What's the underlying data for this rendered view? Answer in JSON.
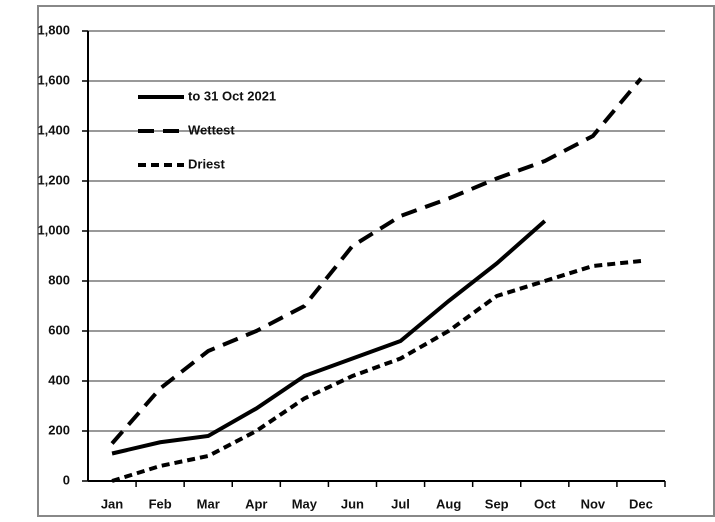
{
  "chart_data": {
    "type": "line",
    "categories": [
      "Jan",
      "Feb",
      "Mar",
      "Apr",
      "May",
      "Jun",
      "Jul",
      "Aug",
      "Sep",
      "Oct",
      "Nov",
      "Dec"
    ],
    "series": [
      {
        "name": "to 31 Oct 2021",
        "color": "#000000",
        "line_style": "solid",
        "values": [
          110,
          155,
          180,
          290,
          420,
          490,
          560,
          720,
          870,
          1040,
          null,
          null
        ]
      },
      {
        "name": "Wettest",
        "color": "#000000",
        "line_style": "dashed",
        "values": [
          150,
          370,
          520,
          600,
          700,
          940,
          1060,
          1130,
          1210,
          1280,
          1380,
          1610
        ]
      },
      {
        "name": "Driest",
        "color": "#000000",
        "line_style": "dotted",
        "values": [
          0,
          60,
          100,
          200,
          330,
          420,
          490,
          600,
          740,
          800,
          860,
          880
        ]
      }
    ],
    "ylim": [
      0,
      1800
    ],
    "yticks": [
      0,
      200,
      400,
      600,
      800,
      {
        "value": 1000,
        "label": "1,000"
      },
      {
        "value": 1200,
        "label": "1,200"
      },
      {
        "value": 1400,
        "label": "1,400"
      },
      {
        "value": 1600,
        "label": "1,600"
      },
      {
        "value": 1800,
        "label": "1,800"
      }
    ],
    "grid": true,
    "legend": "upper left"
  }
}
